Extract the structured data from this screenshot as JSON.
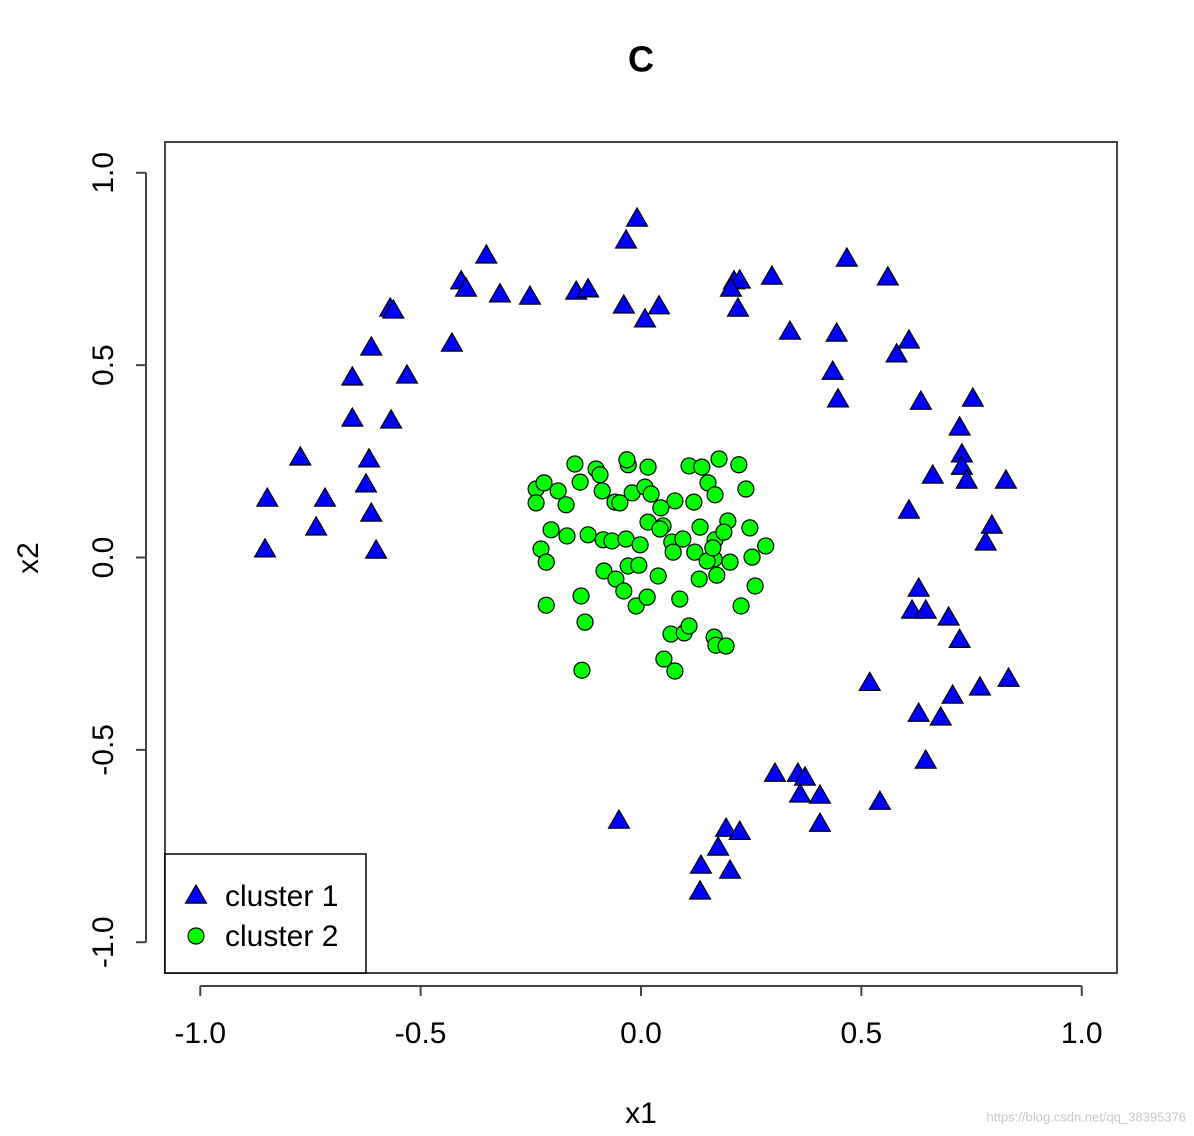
{
  "chart_data": {
    "type": "scatter",
    "title": "C",
    "x_label": "x1",
    "y_label": "x2",
    "xlim": [
      -1.08,
      1.08
    ],
    "ylim": [
      -1.08,
      1.08
    ],
    "xticks": [
      {
        "value": -1.0,
        "label": "-1.0"
      },
      -0.5,
      {
        "value": 0.0,
        "label": "0.0"
      },
      0.5,
      {
        "value": 1.0,
        "label": "1.0"
      }
    ],
    "yticks": [
      {
        "value": -1.0,
        "label": "-1.0"
      },
      -0.5,
      {
        "value": 0.0,
        "label": "0.0"
      },
      0.5,
      {
        "value": 1.0,
        "label": "1.0"
      }
    ],
    "legend": "bottomleft",
    "watermark": "https://blog.csdn.net/qq_38395376",
    "series": [
      {
        "name": "cluster 1",
        "color": "#0000ff",
        "marker": "triangle",
        "x": [
          -0.009,
          -0.034,
          -0.351,
          -0.408,
          -0.397,
          -0.32,
          -0.252,
          -0.147,
          -0.12,
          -0.039,
          0.009,
          0.041,
          0.211,
          0.224,
          0.204,
          0.22,
          0.297,
          0.467,
          0.56,
          0.338,
          0.444,
          0.435,
          0.447,
          0.58,
          0.608,
          0.635,
          0.753,
          0.723,
          0.728,
          0.662,
          0.728,
          0.739,
          0.828,
          0.608,
          0.796,
          0.782,
          0.63,
          0.615,
          0.646,
          0.698,
          0.723,
          0.519,
          0.834,
          0.769,
          0.707,
          0.63,
          0.68,
          0.646,
          0.304,
          0.356,
          0.372,
          0.361,
          0.406,
          0.406,
          0.542,
          -0.05,
          0.193,
          0.224,
          0.175,
          0.136,
          0.202,
          0.134,
          -0.569,
          -0.562,
          -0.429,
          -0.612,
          -0.655,
          -0.531,
          -0.655,
          -0.567,
          -0.617,
          -0.624,
          -0.612,
          -0.773,
          -0.848,
          -0.717,
          -0.737,
          -0.853,
          -0.601
        ],
        "values": [
          0.88,
          0.823,
          0.784,
          0.717,
          0.698,
          0.683,
          0.677,
          0.69,
          0.696,
          0.654,
          0.618,
          0.652,
          0.717,
          0.719,
          0.698,
          0.646,
          0.729,
          0.776,
          0.727,
          0.586,
          0.581,
          0.482,
          0.41,
          0.527,
          0.563,
          0.404,
          0.412,
          0.337,
          0.267,
          0.212,
          0.235,
          0.199,
          0.199,
          0.121,
          0.082,
          0.038,
          -0.082,
          -0.139,
          -0.139,
          -0.157,
          -0.215,
          -0.327,
          -0.316,
          -0.339,
          -0.36,
          -0.407,
          -0.417,
          -0.529,
          -0.563,
          -0.563,
          -0.573,
          -0.617,
          -0.62,
          -0.693,
          -0.636,
          -0.685,
          -0.706,
          -0.714,
          -0.755,
          -0.802,
          -0.815,
          -0.869,
          0.646,
          0.641,
          0.555,
          0.545,
          0.467,
          0.472,
          0.36,
          0.355,
          0.254,
          0.189,
          0.113,
          0.259,
          0.152,
          0.152,
          0.077,
          0.02,
          0.017
        ]
      },
      {
        "name": "cluster 2",
        "color": "#00ff00",
        "marker": "circle",
        "x": [
          -0.15,
          -0.102,
          -0.029,
          -0.093,
          -0.032,
          0.016,
          0.109,
          0.138,
          0.177,
          0.222,
          -0.238,
          -0.22,
          -0.188,
          -0.138,
          -0.088,
          -0.059,
          -0.02,
          0.009,
          0.023,
          0.077,
          0.152,
          0.168,
          0.238,
          -0.238,
          -0.17,
          -0.048,
          0.016,
          0.045,
          0.05,
          0.12,
          0.197,
          -0.204,
          -0.168,
          -0.12,
          -0.086,
          -0.066,
          -0.034,
          -0.002,
          0.043,
          0.07,
          0.095,
          0.134,
          0.168,
          0.188,
          0.247,
          0.283,
          -0.227,
          -0.215,
          -0.084,
          -0.029,
          -0.057,
          -0.005,
          0.039,
          0.073,
          0.122,
          0.166,
          0.172,
          0.252,
          0.202,
          0.259,
          0.132,
          -0.039,
          -0.011,
          0.014,
          0.088,
          -0.215,
          -0.136,
          -0.127,
          0.227,
          0.068,
          0.098,
          0.109,
          0.166,
          0.17,
          0.193,
          0.052,
          0.077,
          -0.134,
          0.15,
          0.163
        ],
        "values": [
          0.243,
          0.23,
          0.241,
          0.215,
          0.254,
          0.235,
          0.238,
          0.235,
          0.256,
          0.241,
          0.178,
          0.194,
          0.173,
          0.196,
          0.173,
          0.144,
          0.168,
          0.183,
          0.165,
          0.147,
          0.194,
          0.163,
          0.178,
          0.142,
          0.137,
          0.142,
          0.092,
          0.129,
          0.082,
          0.144,
          0.095,
          0.072,
          0.056,
          0.059,
          0.046,
          0.043,
          0.048,
          0.033,
          0.074,
          0.04,
          0.048,
          0.079,
          0.046,
          0.066,
          0.077,
          0.03,
          0.022,
          -0.012,
          -0.035,
          -0.022,
          -0.056,
          -0.02,
          -0.048,
          0.014,
          0.014,
          -0.004,
          -0.046,
          0.001,
          -0.012,
          -0.074,
          -0.056,
          -0.087,
          -0.126,
          -0.103,
          -0.108,
          -0.124,
          -0.1,
          -0.168,
          -0.126,
          -0.199,
          -0.196,
          -0.178,
          -0.207,
          -0.228,
          -0.23,
          -0.264,
          -0.295,
          -0.293,
          -0.009,
          0.025
        ]
      }
    ]
  }
}
